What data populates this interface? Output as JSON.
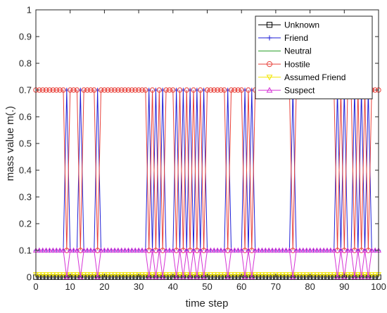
{
  "chart_data": {
    "type": "line",
    "title": "",
    "xlabel": "time step",
    "ylabel": "mass value m(.)",
    "xlim": [
      0,
      100
    ],
    "ylim": [
      0,
      1
    ],
    "x_ticks": [
      "0",
      "10",
      "20",
      "30",
      "40",
      "50",
      "60",
      "70",
      "80",
      "90",
      "100"
    ],
    "y_ticks": [
      "0",
      "0.1",
      "0.2",
      "0.3",
      "0.4",
      "0.5",
      "0.6",
      "0.7",
      "0.8",
      "0.9",
      "1"
    ],
    "grid": false,
    "legend_position": "top-right",
    "x": [
      0,
      1,
      2,
      3,
      4,
      5,
      6,
      7,
      8,
      9,
      10,
      11,
      12,
      13,
      14,
      15,
      16,
      17,
      18,
      19,
      20,
      21,
      22,
      23,
      24,
      25,
      26,
      27,
      28,
      29,
      30,
      31,
      32,
      33,
      34,
      35,
      36,
      37,
      38,
      39,
      40,
      41,
      42,
      43,
      44,
      45,
      46,
      47,
      48,
      49,
      50,
      51,
      52,
      53,
      54,
      55,
      56,
      57,
      58,
      59,
      60,
      61,
      62,
      63,
      64,
      65,
      66,
      67,
      68,
      69,
      70,
      71,
      72,
      73,
      74,
      75,
      76,
      77,
      78,
      79,
      80,
      81,
      82,
      83,
      84,
      85,
      86,
      87,
      88,
      89,
      90,
      91,
      92,
      93,
      94,
      95,
      96,
      97,
      98,
      99,
      100
    ],
    "series": [
      {
        "name": "Unknown",
        "color": "#000000",
        "marker": "square",
        "values": [
          0,
          0,
          0,
          0,
          0,
          0,
          0,
          0,
          0,
          0,
          0,
          0,
          0,
          0,
          0,
          0,
          0,
          0,
          0,
          0,
          0,
          0,
          0,
          0,
          0,
          0,
          0,
          0,
          0,
          0,
          0,
          0,
          0,
          0,
          0,
          0,
          0,
          0,
          0,
          0,
          0,
          0,
          0,
          0,
          0,
          0,
          0,
          0,
          0,
          0,
          0,
          0,
          0,
          0,
          0,
          0,
          0,
          0,
          0,
          0,
          0,
          0,
          0,
          0,
          0,
          0,
          0,
          0,
          0,
          0,
          0,
          0,
          0,
          0,
          0,
          0,
          0,
          0,
          0,
          0,
          0,
          0,
          0,
          0,
          0,
          0,
          0,
          0,
          0,
          0,
          0,
          0,
          0,
          0,
          0,
          0,
          0,
          0,
          0,
          0,
          0
        ]
      },
      {
        "name": "Friend",
        "color": "#1f1fd6",
        "marker": "plus",
        "values": [
          0.1,
          0.1,
          0.1,
          0.1,
          0.1,
          0.1,
          0.1,
          0.1,
          0.1,
          0.7,
          0.1,
          0.1,
          0.1,
          0.7,
          0.1,
          0.1,
          0.1,
          0.1,
          0.7,
          0.1,
          0.1,
          0.1,
          0.1,
          0.1,
          0.1,
          0.1,
          0.1,
          0.1,
          0.1,
          0.1,
          0.1,
          0.1,
          0.1,
          0.7,
          0.1,
          0.7,
          0.1,
          0.7,
          0.1,
          0.1,
          0.1,
          0.7,
          0.1,
          0.7,
          0.1,
          0.7,
          0.1,
          0.7,
          0.1,
          0.7,
          0.1,
          0.1,
          0.1,
          0.1,
          0.1,
          0.1,
          0.7,
          0.1,
          0.1,
          0.1,
          0.1,
          0.7,
          0.1,
          0.7,
          0.1,
          0.1,
          0.1,
          0.1,
          0.1,
          0.1,
          0.1,
          0.1,
          0.1,
          0.1,
          0.1,
          0.7,
          0.1,
          0.1,
          0.1,
          0.1,
          0.1,
          0.1,
          0.1,
          0.1,
          0.1,
          0.1,
          0.1,
          0.1,
          0.7,
          0.1,
          0.7,
          0.1,
          0.1,
          0.7,
          0.1,
          0.7,
          0.1,
          0.7,
          0.1,
          0.1,
          0.1
        ]
      },
      {
        "name": "Neutral",
        "color": "#2ca02c",
        "marker": "none",
        "values": [
          0,
          0,
          0,
          0,
          0,
          0,
          0,
          0,
          0,
          0,
          0,
          0,
          0,
          0,
          0,
          0,
          0,
          0,
          0,
          0,
          0,
          0,
          0,
          0,
          0,
          0,
          0,
          0,
          0,
          0,
          0,
          0,
          0,
          0,
          0,
          0,
          0,
          0,
          0,
          0,
          0,
          0,
          0,
          0,
          0,
          0,
          0,
          0,
          0,
          0,
          0,
          0,
          0,
          0,
          0,
          0,
          0,
          0,
          0,
          0,
          0,
          0,
          0,
          0,
          0,
          0,
          0,
          0,
          0,
          0,
          0,
          0,
          0,
          0,
          0,
          0,
          0,
          0,
          0,
          0,
          0,
          0,
          0,
          0,
          0,
          0,
          0,
          0,
          0,
          0,
          0,
          0,
          0,
          0,
          0,
          0,
          0,
          0,
          0,
          0,
          0
        ]
      },
      {
        "name": "Hostile",
        "color": "#e8413a",
        "marker": "circle",
        "values": [
          0.7,
          0.7,
          0.7,
          0.7,
          0.7,
          0.7,
          0.7,
          0.7,
          0.7,
          0.1,
          0.7,
          0.7,
          0.7,
          0.1,
          0.7,
          0.7,
          0.7,
          0.7,
          0.1,
          0.7,
          0.7,
          0.7,
          0.7,
          0.7,
          0.7,
          0.7,
          0.7,
          0.7,
          0.7,
          0.7,
          0.7,
          0.7,
          0.7,
          0.1,
          0.7,
          0.1,
          0.7,
          0.1,
          0.7,
          0.7,
          0.7,
          0.1,
          0.7,
          0.1,
          0.7,
          0.1,
          0.7,
          0.1,
          0.7,
          0.1,
          0.7,
          0.7,
          0.7,
          0.7,
          0.7,
          0.7,
          0.1,
          0.7,
          0.7,
          0.7,
          0.7,
          0.1,
          0.7,
          0.1,
          0.7,
          0.7,
          0.7,
          0.7,
          0.7,
          0.7,
          0.7,
          0.7,
          0.7,
          0.7,
          0.7,
          0.1,
          0.7,
          0.7,
          0.7,
          0.7,
          0.7,
          0.7,
          0.7,
          0.7,
          0.7,
          0.7,
          0.7,
          0.7,
          0.1,
          0.7,
          0.1,
          0.7,
          0.7,
          0.1,
          0.7,
          0.1,
          0.7,
          0.1,
          0.7,
          0.7,
          0.7
        ]
      },
      {
        "name": "Assumed Friend",
        "color": "#f2e600",
        "marker": "triangle-down",
        "values": [
          0.01,
          0.01,
          0.01,
          0.01,
          0.01,
          0.01,
          0.01,
          0.01,
          0.01,
          0.01,
          0.01,
          0.01,
          0.01,
          0.01,
          0.01,
          0.01,
          0.01,
          0.01,
          0.01,
          0.01,
          0.01,
          0.01,
          0.01,
          0.01,
          0.01,
          0.01,
          0.01,
          0.01,
          0.01,
          0.01,
          0.01,
          0.01,
          0.01,
          0.01,
          0.01,
          0.01,
          0.01,
          0.01,
          0.01,
          0.01,
          0.01,
          0.01,
          0.01,
          0.01,
          0.01,
          0.01,
          0.01,
          0.01,
          0.01,
          0.01,
          0.01,
          0.01,
          0.01,
          0.01,
          0.01,
          0.01,
          0.01,
          0.01,
          0.01,
          0.01,
          0.01,
          0.01,
          0.01,
          0.01,
          0.01,
          0.01,
          0.01,
          0.01,
          0.01,
          0.01,
          0.01,
          0.01,
          0.01,
          0.01,
          0.01,
          0.01,
          0.01,
          0.01,
          0.01,
          0.01,
          0.01,
          0.01,
          0.01,
          0.01,
          0.01,
          0.01,
          0.01,
          0.01,
          0.01,
          0.01,
          0.01,
          0.01,
          0.01,
          0.01,
          0.01,
          0.01,
          0.01,
          0.01,
          0.01,
          0.01,
          0.01
        ]
      },
      {
        "name": "Suspect",
        "color": "#d633d6",
        "marker": "triangle-up",
        "values": [
          0.1,
          0.1,
          0.1,
          0.1,
          0.1,
          0.1,
          0.1,
          0.1,
          0.1,
          0,
          0.1,
          0.1,
          0.1,
          0,
          0.1,
          0.1,
          0.1,
          0.1,
          0,
          0.1,
          0.1,
          0.1,
          0.1,
          0.1,
          0.1,
          0.1,
          0.1,
          0.1,
          0.1,
          0.1,
          0.1,
          0.1,
          0.1,
          0,
          0.1,
          0,
          0.1,
          0,
          0.1,
          0.1,
          0.1,
          0,
          0.1,
          0,
          0.1,
          0,
          0.1,
          0,
          0.1,
          0,
          0.1,
          0.1,
          0.1,
          0.1,
          0.1,
          0.1,
          0,
          0.1,
          0.1,
          0.1,
          0.1,
          0,
          0.1,
          0,
          0.1,
          0.1,
          0.1,
          0.1,
          0.1,
          0.1,
          0.1,
          0.1,
          0.1,
          0.1,
          0.1,
          0,
          0.1,
          0.1,
          0.1,
          0.1,
          0.1,
          0.1,
          0.1,
          0.1,
          0.1,
          0.1,
          0.1,
          0.1,
          0,
          0.1,
          0,
          0.1,
          0.1,
          0,
          0.1,
          0,
          0.1,
          0,
          0.1,
          0.1,
          0.1
        ]
      }
    ]
  }
}
